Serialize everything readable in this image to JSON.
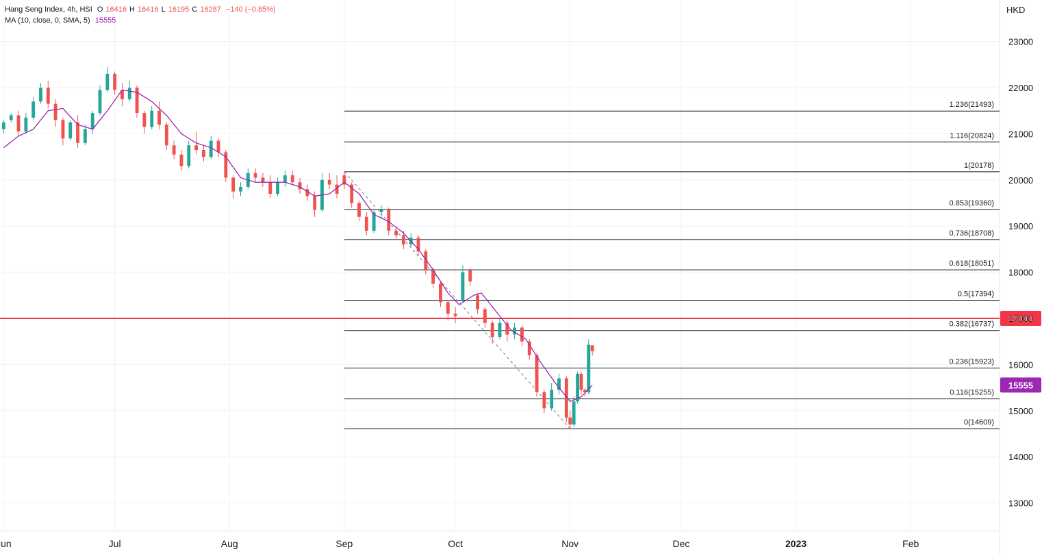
{
  "legend": {
    "symbol": "Hang Seng Index, 4h, HSI",
    "open_label": "O",
    "open": "16416",
    "high_label": "H",
    "high": "16416",
    "low_label": "L",
    "low": "16195",
    "close_label": "C",
    "close": "16287",
    "change": "−140 (−0.85%)",
    "ma_label": "MA (10, close, 0, SMA, 5)",
    "ma_value": "15555"
  },
  "currency": "HKD",
  "colors": {
    "up": "#26a69a",
    "down": "#ef5350",
    "ma": "#9c27b0",
    "fib_line": "#131722",
    "horizontal_line": "#f23645",
    "grid": "#f0f3fa"
  },
  "badges": {
    "horizontal_line": "17000",
    "ma_last": "15555"
  },
  "chart_data": {
    "type": "candlestick",
    "title": "Hang Seng Index, 4h, HSI",
    "ylabel": "HKD",
    "ylim": [
      12400,
      23900
    ],
    "xlim": [
      "2022-05-31",
      "2023-02-25"
    ],
    "y_ticks": [
      13000,
      14000,
      15000,
      16000,
      17000,
      18000,
      19000,
      20000,
      21000,
      22000,
      23000
    ],
    "x_ticks": [
      {
        "label": "Jun",
        "date": "2022-06-01"
      },
      {
        "label": "Jul",
        "date": "2022-07-01"
      },
      {
        "label": "Aug",
        "date": "2022-08-01"
      },
      {
        "label": "Sep",
        "date": "2022-09-01"
      },
      {
        "label": "Oct",
        "date": "2022-10-01"
      },
      {
        "label": "Nov",
        "date": "2022-11-01"
      },
      {
        "label": "Dec",
        "date": "2022-12-01"
      },
      {
        "label": "2023",
        "date": "2023-01-01"
      },
      {
        "label": "Feb",
        "date": "2023-02-01"
      }
    ],
    "grid": true,
    "candles_approx": [
      {
        "date": "2022-06-01",
        "o": 21100,
        "h": 21300,
        "l": 21000,
        "c": 21250
      },
      {
        "date": "2022-06-03",
        "o": 21300,
        "h": 21450,
        "l": 21250,
        "c": 21400
      },
      {
        "date": "2022-06-05",
        "o": 21400,
        "h": 21500,
        "l": 20950,
        "c": 21050
      },
      {
        "date": "2022-06-07",
        "o": 21050,
        "h": 21450,
        "l": 21000,
        "c": 21350
      },
      {
        "date": "2022-06-09",
        "o": 21350,
        "h": 21800,
        "l": 21300,
        "c": 21700
      },
      {
        "date": "2022-06-11",
        "o": 21700,
        "h": 22100,
        "l": 21650,
        "c": 22000
      },
      {
        "date": "2022-06-13",
        "o": 22000,
        "h": 22150,
        "l": 21550,
        "c": 21650
      },
      {
        "date": "2022-06-15",
        "o": 21650,
        "h": 21750,
        "l": 21150,
        "c": 21300
      },
      {
        "date": "2022-06-17",
        "o": 21300,
        "h": 21350,
        "l": 20750,
        "c": 20900
      },
      {
        "date": "2022-06-19",
        "o": 20900,
        "h": 21300,
        "l": 20850,
        "c": 21250
      },
      {
        "date": "2022-06-21",
        "o": 21250,
        "h": 21400,
        "l": 20700,
        "c": 20800
      },
      {
        "date": "2022-06-23",
        "o": 20800,
        "h": 21200,
        "l": 20750,
        "c": 21100
      },
      {
        "date": "2022-06-25",
        "o": 21100,
        "h": 21500,
        "l": 21000,
        "c": 21450
      },
      {
        "date": "2022-06-27",
        "o": 21450,
        "h": 22050,
        "l": 21400,
        "c": 21950
      },
      {
        "date": "2022-06-29",
        "o": 21950,
        "h": 22450,
        "l": 21900,
        "c": 22300
      },
      {
        "date": "2022-07-01",
        "o": 22300,
        "h": 22350,
        "l": 21850,
        "c": 21950
      },
      {
        "date": "2022-07-03",
        "o": 21950,
        "h": 22100,
        "l": 21600,
        "c": 21750
      },
      {
        "date": "2022-07-05",
        "o": 21750,
        "h": 22150,
        "l": 21700,
        "c": 22000
      },
      {
        "date": "2022-07-07",
        "o": 22000,
        "h": 22050,
        "l": 21350,
        "c": 21450
      },
      {
        "date": "2022-07-09",
        "o": 21450,
        "h": 21500,
        "l": 21000,
        "c": 21150
      },
      {
        "date": "2022-07-11",
        "o": 21150,
        "h": 21600,
        "l": 21100,
        "c": 21500
      },
      {
        "date": "2022-07-13",
        "o": 21500,
        "h": 21700,
        "l": 21100,
        "c": 21200
      },
      {
        "date": "2022-07-15",
        "o": 21200,
        "h": 21250,
        "l": 20650,
        "c": 20750
      },
      {
        "date": "2022-07-17",
        "o": 20750,
        "h": 20850,
        "l": 20450,
        "c": 20550
      },
      {
        "date": "2022-07-19",
        "o": 20550,
        "h": 20650,
        "l": 20200,
        "c": 20300
      },
      {
        "date": "2022-07-21",
        "o": 20300,
        "h": 20850,
        "l": 20250,
        "c": 20750
      },
      {
        "date": "2022-07-23",
        "o": 20750,
        "h": 21050,
        "l": 20550,
        "c": 20650
      },
      {
        "date": "2022-07-25",
        "o": 20650,
        "h": 20750,
        "l": 20400,
        "c": 20500
      },
      {
        "date": "2022-07-27",
        "o": 20500,
        "h": 20950,
        "l": 20450,
        "c": 20850
      },
      {
        "date": "2022-07-29",
        "o": 20850,
        "h": 20900,
        "l": 20500,
        "c": 20600
      },
      {
        "date": "2022-07-31",
        "o": 20600,
        "h": 20650,
        "l": 19950,
        "c": 20050
      },
      {
        "date": "2022-08-02",
        "o": 20050,
        "h": 20100,
        "l": 19600,
        "c": 19750
      },
      {
        "date": "2022-08-04",
        "o": 19750,
        "h": 19950,
        "l": 19650,
        "c": 19850
      },
      {
        "date": "2022-08-06",
        "o": 19850,
        "h": 20250,
        "l": 19800,
        "c": 20150
      },
      {
        "date": "2022-08-08",
        "o": 20150,
        "h": 20250,
        "l": 19950,
        "c": 20050
      },
      {
        "date": "2022-08-10",
        "o": 20050,
        "h": 20150,
        "l": 19850,
        "c": 19950
      },
      {
        "date": "2022-08-12",
        "o": 19950,
        "h": 20100,
        "l": 19600,
        "c": 19700
      },
      {
        "date": "2022-08-14",
        "o": 19700,
        "h": 20050,
        "l": 19650,
        "c": 19950
      },
      {
        "date": "2022-08-16",
        "o": 19950,
        "h": 20200,
        "l": 19850,
        "c": 20100
      },
      {
        "date": "2022-08-18",
        "o": 20100,
        "h": 20200,
        "l": 19900,
        "c": 19950
      },
      {
        "date": "2022-08-20",
        "o": 19950,
        "h": 20050,
        "l": 19700,
        "c": 19800
      },
      {
        "date": "2022-08-22",
        "o": 19800,
        "h": 19900,
        "l": 19550,
        "c": 19650
      },
      {
        "date": "2022-08-24",
        "o": 19650,
        "h": 19750,
        "l": 19200,
        "c": 19350
      },
      {
        "date": "2022-08-26",
        "o": 19350,
        "h": 20150,
        "l": 19300,
        "c": 20000
      },
      {
        "date": "2022-08-28",
        "o": 20000,
        "h": 20150,
        "l": 19800,
        "c": 19900
      },
      {
        "date": "2022-08-30",
        "o": 19900,
        "h": 20100,
        "l": 19600,
        "c": 19700
      },
      {
        "date": "2022-09-01",
        "o": 20100,
        "h": 20178,
        "l": 19800,
        "c": 19900
      },
      {
        "date": "2022-09-03",
        "o": 19900,
        "h": 19950,
        "l": 19400,
        "c": 19500
      },
      {
        "date": "2022-09-05",
        "o": 19500,
        "h": 19550,
        "l": 19100,
        "c": 19200
      },
      {
        "date": "2022-09-07",
        "o": 19200,
        "h": 19300,
        "l": 18800,
        "c": 18900
      },
      {
        "date": "2022-09-09",
        "o": 18900,
        "h": 19350,
        "l": 18850,
        "c": 19300
      },
      {
        "date": "2022-09-11",
        "o": 19300,
        "h": 19450,
        "l": 19150,
        "c": 19350
      },
      {
        "date": "2022-09-13",
        "o": 19350,
        "h": 19400,
        "l": 18800,
        "c": 18900
      },
      {
        "date": "2022-09-15",
        "o": 18900,
        "h": 19000,
        "l": 18700,
        "c": 18800
      },
      {
        "date": "2022-09-17",
        "o": 18800,
        "h": 18900,
        "l": 18500,
        "c": 18600
      },
      {
        "date": "2022-09-19",
        "o": 18600,
        "h": 18850,
        "l": 18550,
        "c": 18750
      },
      {
        "date": "2022-09-21",
        "o": 18750,
        "h": 18800,
        "l": 18350,
        "c": 18450
      },
      {
        "date": "2022-09-23",
        "o": 18450,
        "h": 18500,
        "l": 17950,
        "c": 18050
      },
      {
        "date": "2022-09-25",
        "o": 18050,
        "h": 18100,
        "l": 17650,
        "c": 17750
      },
      {
        "date": "2022-09-27",
        "o": 17750,
        "h": 17800,
        "l": 17250,
        "c": 17350
      },
      {
        "date": "2022-09-29",
        "o": 17350,
        "h": 17400,
        "l": 16950,
        "c": 17100
      },
      {
        "date": "2022-10-01",
        "o": 17100,
        "h": 17250,
        "l": 16900,
        "c": 17050
      },
      {
        "date": "2022-10-03",
        "o": 17400,
        "h": 18150,
        "l": 17350,
        "c": 18000
      },
      {
        "date": "2022-10-05",
        "o": 18050,
        "h": 18100,
        "l": 17700,
        "c": 17800
      },
      {
        "date": "2022-10-07",
        "o": 17500,
        "h": 17550,
        "l": 17100,
        "c": 17200
      },
      {
        "date": "2022-10-09",
        "o": 17200,
        "h": 17250,
        "l": 16800,
        "c": 16900
      },
      {
        "date": "2022-10-11",
        "o": 16900,
        "h": 16950,
        "l": 16450,
        "c": 16600
      },
      {
        "date": "2022-10-13",
        "o": 16600,
        "h": 17000,
        "l": 16550,
        "c": 16900
      },
      {
        "date": "2022-10-15",
        "o": 16900,
        "h": 16950,
        "l": 16500,
        "c": 16650
      },
      {
        "date": "2022-10-17",
        "o": 16650,
        "h": 16900,
        "l": 16550,
        "c": 16800
      },
      {
        "date": "2022-10-19",
        "o": 16800,
        "h": 16850,
        "l": 16400,
        "c": 16500
      },
      {
        "date": "2022-10-21",
        "o": 16500,
        "h": 16550,
        "l": 16100,
        "c": 16200
      },
      {
        "date": "2022-10-23",
        "o": 16200,
        "h": 16250,
        "l": 15300,
        "c": 15400
      },
      {
        "date": "2022-10-25",
        "o": 15400,
        "h": 15450,
        "l": 14950,
        "c": 15050
      },
      {
        "date": "2022-10-27",
        "o": 15050,
        "h": 15600,
        "l": 15000,
        "c": 15450
      },
      {
        "date": "2022-10-29",
        "o": 15450,
        "h": 15800,
        "l": 15350,
        "c": 15700
      },
      {
        "date": "2022-10-31",
        "o": 15700,
        "h": 15750,
        "l": 14750,
        "c": 14850
      },
      {
        "date": "2022-11-01",
        "o": 14850,
        "h": 15000,
        "l": 14609,
        "c": 14700
      },
      {
        "date": "2022-11-02",
        "o": 14700,
        "h": 15300,
        "l": 14650,
        "c": 15200
      },
      {
        "date": "2022-11-03",
        "o": 15200,
        "h": 15850,
        "l": 15150,
        "c": 15800
      },
      {
        "date": "2022-11-04",
        "o": 15800,
        "h": 15850,
        "l": 15350,
        "c": 15450
      },
      {
        "date": "2022-11-05",
        "o": 15450,
        "h": 15500,
        "l": 15300,
        "c": 15400
      },
      {
        "date": "2022-11-06",
        "o": 15400,
        "h": 16550,
        "l": 15350,
        "c": 16427
      },
      {
        "date": "2022-11-07",
        "o": 16416,
        "h": 16416,
        "l": 16195,
        "c": 16287
      }
    ],
    "moving_average": {
      "name": "MA (10, close, 0, SMA, 5)",
      "last_value": 15555,
      "points": [
        {
          "date": "2022-06-01",
          "v": 20700
        },
        {
          "date": "2022-06-05",
          "v": 20950
        },
        {
          "date": "2022-06-09",
          "v": 21100
        },
        {
          "date": "2022-06-13",
          "v": 21500
        },
        {
          "date": "2022-06-17",
          "v": 21550
        },
        {
          "date": "2022-06-21",
          "v": 21200
        },
        {
          "date": "2022-06-25",
          "v": 21100
        },
        {
          "date": "2022-06-29",
          "v": 21500
        },
        {
          "date": "2022-07-03",
          "v": 21950
        },
        {
          "date": "2022-07-07",
          "v": 21900
        },
        {
          "date": "2022-07-11",
          "v": 21700
        },
        {
          "date": "2022-07-15",
          "v": 21400
        },
        {
          "date": "2022-07-19",
          "v": 21000
        },
        {
          "date": "2022-07-23",
          "v": 20800
        },
        {
          "date": "2022-07-27",
          "v": 20700
        },
        {
          "date": "2022-07-31",
          "v": 20500
        },
        {
          "date": "2022-08-04",
          "v": 20050
        },
        {
          "date": "2022-08-08",
          "v": 19950
        },
        {
          "date": "2022-08-12",
          "v": 19950
        },
        {
          "date": "2022-08-16",
          "v": 19950
        },
        {
          "date": "2022-08-20",
          "v": 19850
        },
        {
          "date": "2022-08-24",
          "v": 19650
        },
        {
          "date": "2022-08-28",
          "v": 19700
        },
        {
          "date": "2022-09-01",
          "v": 19950
        },
        {
          "date": "2022-09-05",
          "v": 19700
        },
        {
          "date": "2022-09-09",
          "v": 19250
        },
        {
          "date": "2022-09-13",
          "v": 19100
        },
        {
          "date": "2022-09-17",
          "v": 18850
        },
        {
          "date": "2022-09-21",
          "v": 18500
        },
        {
          "date": "2022-09-25",
          "v": 18050
        },
        {
          "date": "2022-09-29",
          "v": 17550
        },
        {
          "date": "2022-10-02",
          "v": 17300
        },
        {
          "date": "2022-10-06",
          "v": 17500
        },
        {
          "date": "2022-10-08",
          "v": 17550
        },
        {
          "date": "2022-10-12",
          "v": 17150
        },
        {
          "date": "2022-10-16",
          "v": 16750
        },
        {
          "date": "2022-10-20",
          "v": 16550
        },
        {
          "date": "2022-10-24",
          "v": 16050
        },
        {
          "date": "2022-10-28",
          "v": 15600
        },
        {
          "date": "2022-11-01",
          "v": 15200
        },
        {
          "date": "2022-11-04",
          "v": 15300
        },
        {
          "date": "2022-11-07",
          "v": 15555
        }
      ]
    },
    "horizontal_line": {
      "value": 17000,
      "label": "17000"
    },
    "fibonacci": {
      "start_date": "2022-09-01",
      "end_date": "2023-02-25",
      "trend_from": {
        "date": "2022-09-01",
        "value": 20178
      },
      "trend_to": {
        "date": "2022-11-01",
        "value": 14609
      },
      "levels": [
        {
          "value": 21493,
          "label": "1.236(21493)"
        },
        {
          "value": 20824,
          "label": "1.116(20824)"
        },
        {
          "value": 20178,
          "label": "1(20178)"
        },
        {
          "value": 19360,
          "label": "0.853(19360)"
        },
        {
          "value": 18708,
          "label": "0.736(18708)"
        },
        {
          "value": 18051,
          "label": "0.618(18051)"
        },
        {
          "value": 17394,
          "label": "0.5(17394)"
        },
        {
          "value": 16737,
          "label": "0.382(16737)"
        },
        {
          "value": 15923,
          "label": "0.236(15923)"
        },
        {
          "value": 15255,
          "label": "0.116(15255)"
        },
        {
          "value": 14609,
          "label": "0(14609)"
        }
      ]
    }
  }
}
